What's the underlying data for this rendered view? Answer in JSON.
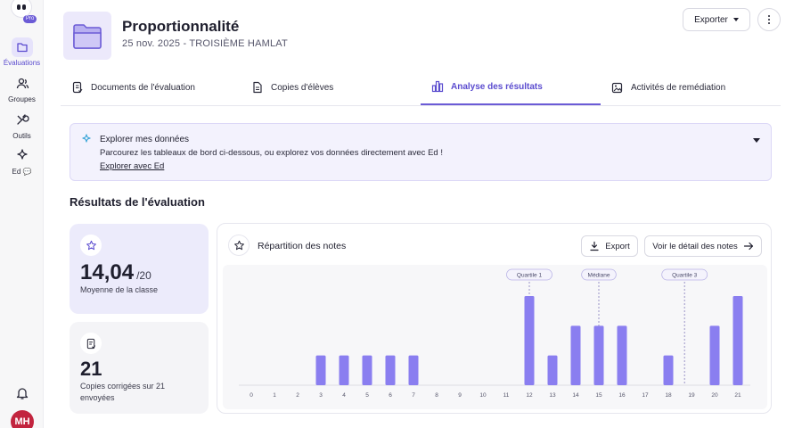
{
  "sidebar": {
    "logo_badge": "Pro",
    "items": [
      {
        "label": "Évaluations",
        "icon": "folder-icon",
        "active": true
      },
      {
        "label": "Groupes",
        "icon": "users-icon",
        "active": false
      },
      {
        "label": "Outils",
        "icon": "tools-icon",
        "active": false
      },
      {
        "label": "Ed 💬",
        "icon": "sparkle-icon",
        "active": false
      }
    ],
    "avatar_initials": "MH"
  },
  "header": {
    "title": "Proportionnalité",
    "subtitle": "25 nov. 2025 - TROISIÈME HAMLAT",
    "export_label": "Exporter"
  },
  "tabs": [
    {
      "label": "Documents de l'évaluation",
      "active": false
    },
    {
      "label": "Copies d'élèves",
      "active": false
    },
    {
      "label": "Analyse des résultats",
      "active": true
    },
    {
      "label": "Activités de remédiation",
      "active": false
    }
  ],
  "banner": {
    "title": "Explorer mes données",
    "text": "Parcourez les tableaux de bord ci-dessous, ou explorez vos données directement avec Ed !",
    "link": "Explorer avec Ed"
  },
  "section_title": "Résultats de l'évaluation",
  "stats": {
    "average": "14,04",
    "average_denominator": "/20",
    "average_label": "Moyenne de la classe",
    "corrected_count": "21",
    "corrected_label_line1": "Copies corrigées sur 21",
    "corrected_label_line2": "envoyées"
  },
  "chart_panel": {
    "title": "Répartition des notes",
    "export_label": "Export",
    "detail_label": "Voir le détail des notes"
  },
  "chart_data": {
    "type": "bar",
    "categories": [
      "0",
      "1",
      "2",
      "3",
      "4",
      "5",
      "6",
      "7",
      "8",
      "9",
      "10",
      "11",
      "12",
      "13",
      "14",
      "15",
      "16",
      "17",
      "18",
      "19",
      "20",
      "21"
    ],
    "values": [
      0,
      0,
      0,
      1,
      1,
      1,
      1,
      1,
      0,
      0,
      0,
      0,
      3,
      1,
      2,
      2,
      2,
      0,
      1,
      0,
      2,
      3
    ],
    "ylim": [
      0,
      3
    ],
    "bar_color": "#8a7ef0",
    "markers": [
      {
        "label": "Quartile 1",
        "x": 12
      },
      {
        "label": "Médiane",
        "x": 15
      },
      {
        "label": "Quartile 3",
        "x": 18.7
      }
    ]
  }
}
